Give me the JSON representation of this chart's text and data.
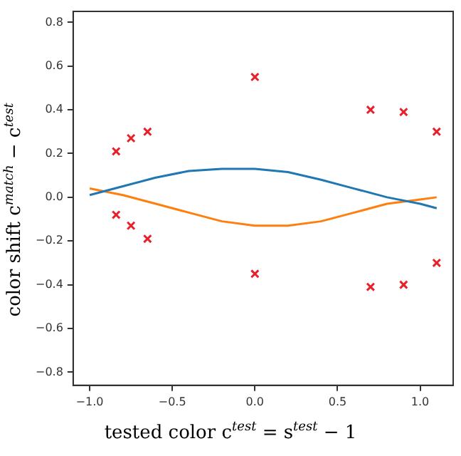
{
  "chart_data": {
    "type": "line",
    "xlabel": "tested color c$^{test}$ = s$^{test}$ − 1",
    "ylabel": "color shift c$^{match}$ − c$^{test}$",
    "xlim": [
      -1.1,
      1.2
    ],
    "ylim": [
      -0.86,
      0.85
    ],
    "xticks": [
      {
        "value": -1.0,
        "label": "−1.0"
      },
      {
        "value": -0.5,
        "label": "−0.5"
      },
      {
        "value": 0,
        "label": "0.0"
      },
      0.5,
      {
        "value": 1,
        "label": "1.0"
      }
    ],
    "yticks": [
      {
        "value": -0.8,
        "label": "−0.8"
      },
      {
        "value": -0.6,
        "label": "−0.6"
      },
      {
        "value": -0.4,
        "label": "−0.4"
      },
      {
        "value": -0.2,
        "label": "−0.2"
      },
      {
        "value": 0,
        "label": "0.0"
      },
      0.2,
      0.4,
      0.6,
      0.8
    ],
    "grid": false,
    "legend": false,
    "series": [
      {
        "type": "scatter",
        "color": "#e8202a",
        "marker": "cross",
        "x": [
          -0.84,
          -0.75,
          -0.65,
          0.0,
          0.7,
          0.9,
          1.1,
          -0.84,
          -0.75,
          -0.65,
          0.0,
          0.7,
          0.9,
          1.1
        ],
        "values": [
          0.21,
          0.27,
          0.3,
          0.55,
          0.4,
          0.39,
          0.3,
          -0.08,
          -0.13,
          -0.19,
          -0.35,
          -0.41,
          -0.4,
          -0.3
        ]
      },
      {
        "color": "#1f77b4",
        "marker": "none",
        "x": [
          -1.0,
          -0.8,
          -0.6,
          -0.4,
          -0.2,
          0.0,
          0.2,
          0.4,
          0.6,
          0.8,
          1.0,
          1.1
        ],
        "values": [
          0.01,
          0.05,
          0.09,
          0.12,
          0.13,
          0.13,
          0.115,
          0.08,
          0.04,
          0.0,
          -0.03,
          -0.05
        ]
      },
      {
        "color": "#ff7f0e",
        "marker": "none",
        "x": [
          -1.0,
          -0.8,
          -0.6,
          -0.4,
          -0.2,
          0.0,
          0.2,
          0.4,
          0.6,
          0.8,
          1.0,
          1.1
        ],
        "values": [
          0.04,
          0.01,
          -0.03,
          -0.07,
          -0.11,
          -0.13,
          -0.13,
          -0.11,
          -0.07,
          -0.03,
          -0.01,
          0.0
        ]
      }
    ]
  }
}
